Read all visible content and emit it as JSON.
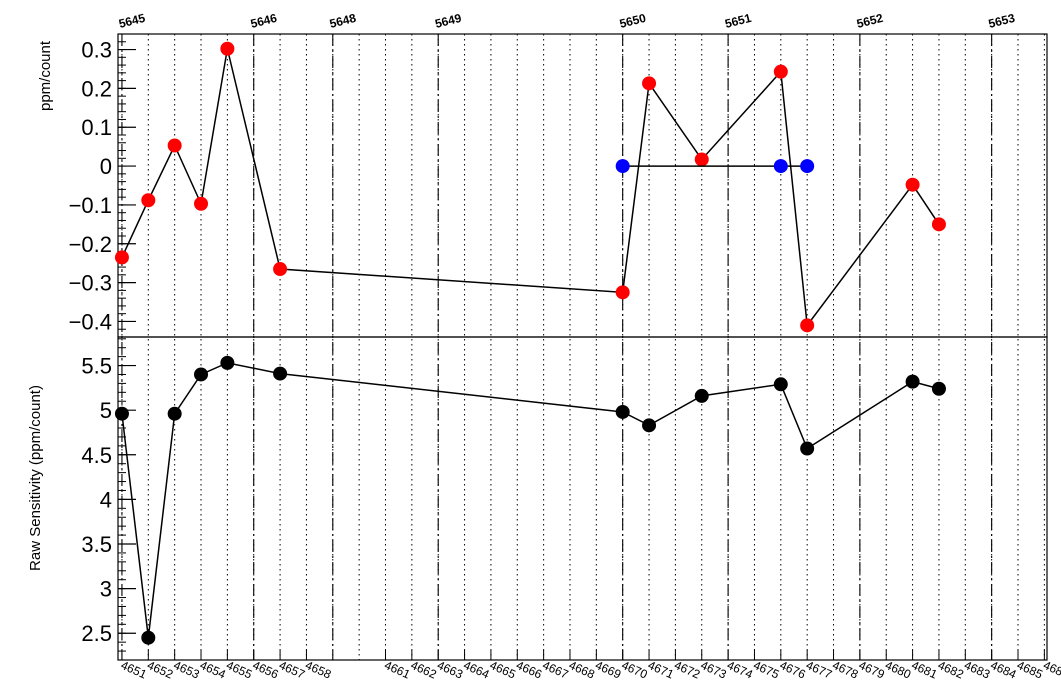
{
  "chart_data": [
    {
      "type": "scatter",
      "panel": "top",
      "ylabel": "ppm/count",
      "ylim": [
        -0.44,
        0.34
      ],
      "yticks": [
        {
          "v": 0.3,
          "label": "0.3"
        },
        {
          "v": 0.2,
          "label": "0.2"
        },
        {
          "v": 0.1,
          "label": "0.1"
        },
        {
          "v": 0,
          "label": "0"
        },
        {
          "v": -0.1,
          "label": "−0.1"
        },
        {
          "v": -0.2,
          "label": "−0.2"
        },
        {
          "v": -0.3,
          "label": "−0.3"
        },
        {
          "v": -0.4,
          "label": "−0.4"
        }
      ],
      "series": [
        {
          "color": "#ff0000",
          "x": [
            4651,
            4652,
            4653,
            4654,
            4655,
            4657,
            4670,
            4671,
            4673,
            4676,
            4677,
            4681,
            4682
          ],
          "y": [
            -0.235,
            -0.088,
            0.053,
            -0.097,
            0.302,
            -0.265,
            -0.325,
            0.213,
            0.017,
            0.243,
            -0.41,
            -0.048,
            -0.15
          ]
        },
        {
          "color": "#0000ff",
          "x": [
            4670,
            4676,
            4677
          ],
          "y": [
            0.0,
            0.0,
            0.0
          ]
        }
      ]
    },
    {
      "type": "line",
      "panel": "bottom",
      "ylabel": "Raw Sensitivity (ppm/count)",
      "ylim": [
        2.2,
        5.82
      ],
      "yticks": [
        {
          "v": 5.5,
          "label": "5.5"
        },
        {
          "v": 5,
          "label": "5"
        },
        {
          "v": 4.5,
          "label": "4.5"
        },
        {
          "v": 4,
          "label": "4"
        },
        {
          "v": 3.5,
          "label": "3.5"
        },
        {
          "v": 3,
          "label": "3"
        },
        {
          "v": 2.5,
          "label": "2.5"
        }
      ],
      "series": [
        {
          "color": "#000000",
          "x": [
            4651,
            4652,
            4653,
            4654,
            4655,
            4657,
            4670,
            4671,
            4673,
            4676,
            4677,
            4681,
            4682
          ],
          "y": [
            4.96,
            2.45,
            4.96,
            5.4,
            5.53,
            5.41,
            4.98,
            4.83,
            5.16,
            5.29,
            4.57,
            5.32,
            5.24
          ]
        }
      ]
    }
  ],
  "x_axis": {
    "range": [
      4650.85,
      4686.1
    ],
    "bottom_labels": [
      "4651",
      "4652",
      "4653",
      "4654",
      "4655",
      "4656",
      "4657",
      "4658",
      "4661",
      "4662",
      "4663",
      "4664",
      "4665",
      "4666",
      "4667",
      "4668",
      "4669",
      "4670",
      "4671",
      "4672",
      "4673",
      "4674",
      "4675",
      "4676",
      "4677",
      "4678",
      "4679",
      "4680",
      "4681",
      "4682",
      "4683",
      "4684",
      "4685",
      "4686"
    ],
    "top_labels": [
      {
        "label": "5645",
        "x": 4651
      },
      {
        "label": "5646",
        "x": 4656
      },
      {
        "label": "5648",
        "x": 4659
      },
      {
        "label": "5649",
        "x": 4663
      },
      {
        "label": "5650",
        "x": 4670
      },
      {
        "label": "5651",
        "x": 4674
      },
      {
        "label": "5652",
        "x": 4679
      },
      {
        "label": "5653",
        "x": 4684
      }
    ]
  }
}
